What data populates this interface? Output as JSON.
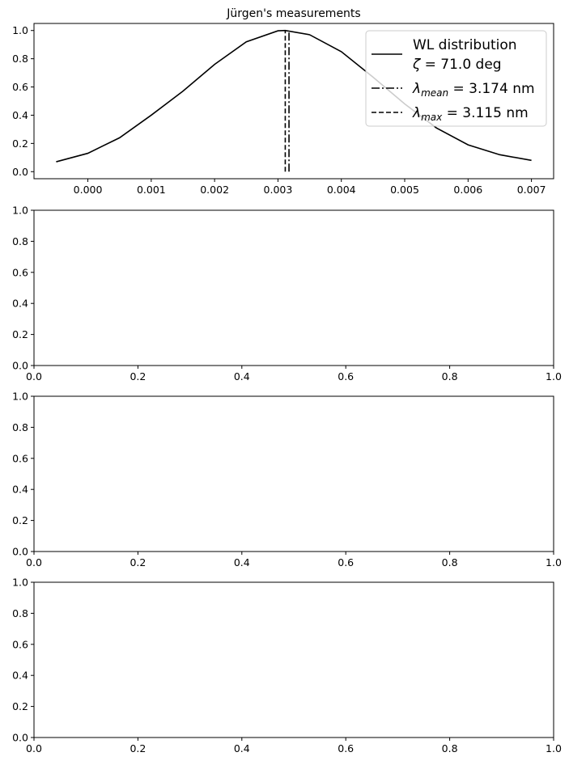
{
  "chart_data": [
    {
      "type": "line",
      "title": "Jürgen's measurements",
      "xlabel": "",
      "ylabel": "",
      "xlim": [
        -0.00085,
        0.00735
      ],
      "ylim": [
        -0.05,
        1.05
      ],
      "xticks": [
        "0.000",
        "0.001",
        "0.002",
        "0.003",
        "0.004",
        "0.005",
        "0.006",
        "0.007"
      ],
      "yticks": [
        "0.0",
        "0.2",
        "0.4",
        "0.6",
        "0.8",
        "1.0"
      ],
      "grid": false,
      "legend_position": "top-right",
      "series": [
        {
          "name": "WL distribution ζ = 71.0 deg",
          "style": "solid",
          "x": [
            -0.0005,
            0.0,
            0.0005,
            0.001,
            0.0015,
            0.002,
            0.0025,
            0.003,
            0.003115,
            0.0035,
            0.004,
            0.0045,
            0.005,
            0.0055,
            0.006,
            0.0065,
            0.007
          ],
          "y": [
            0.07,
            0.13,
            0.24,
            0.4,
            0.57,
            0.76,
            0.92,
            0.998,
            1.0,
            0.97,
            0.85,
            0.67,
            0.48,
            0.31,
            0.19,
            0.12,
            0.08
          ]
        },
        {
          "name": "λmean = 3.174 nm",
          "style": "dashdot",
          "x": [
            0.003174,
            0.003174
          ],
          "y": [
            0.0,
            1.0
          ]
        },
        {
          "name": "λmax = 3.115 nm",
          "style": "dashed",
          "x": [
            0.003115,
            0.003115
          ],
          "y": [
            0.0,
            1.0
          ]
        }
      ],
      "legend": [
        {
          "line1": "WL distribution",
          "line2_sym": "ζ",
          "line2_rest": " = 71.0 deg"
        },
        {
          "sym": "λ",
          "sub": "mean",
          "rest": " = 3.174 nm"
        },
        {
          "sym": "λ",
          "sub": "max",
          "rest": " = 3.115 nm"
        }
      ]
    },
    {
      "type": "line",
      "xlim": [
        0,
        1
      ],
      "ylim": [
        0,
        1
      ],
      "xticks": [
        "0.0",
        "0.2",
        "0.4",
        "0.6",
        "0.8",
        "1.0"
      ],
      "yticks": [
        "0.0",
        "0.2",
        "0.4",
        "0.6",
        "0.8",
        "1.0"
      ],
      "series": []
    },
    {
      "type": "line",
      "xlim": [
        0,
        1
      ],
      "ylim": [
        0,
        1
      ],
      "xticks": [
        "0.0",
        "0.2",
        "0.4",
        "0.6",
        "0.8",
        "1.0"
      ],
      "yticks": [
        "0.0",
        "0.2",
        "0.4",
        "0.6",
        "0.8",
        "1.0"
      ],
      "series": []
    },
    {
      "type": "line",
      "xlim": [
        0,
        1
      ],
      "ylim": [
        0,
        1
      ],
      "xticks": [
        "0.0",
        "0.2",
        "0.4",
        "0.6",
        "0.8",
        "1.0"
      ],
      "yticks": [
        "0.0",
        "0.2",
        "0.4",
        "0.6",
        "0.8",
        "1.0"
      ],
      "series": []
    }
  ]
}
